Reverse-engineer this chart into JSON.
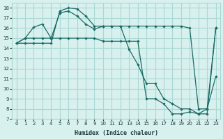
{
  "xlabel": "Humidex (Indice chaleur)",
  "bg_color": "#d8f0ee",
  "line_color": "#1a6b64",
  "grid_color": "#aad8d4",
  "xlim": [
    -0.5,
    23.5
  ],
  "ylim": [
    7,
    18.5
  ],
  "xticks": [
    0,
    1,
    2,
    3,
    4,
    5,
    6,
    7,
    8,
    9,
    10,
    11,
    12,
    13,
    14,
    15,
    16,
    17,
    18,
    19,
    20,
    21,
    22,
    23
  ],
  "yticks": [
    7,
    8,
    9,
    10,
    11,
    12,
    13,
    14,
    15,
    16,
    17,
    18
  ],
  "line1_x": [
    0,
    1,
    2,
    3,
    4,
    5,
    6,
    7,
    8,
    9,
    10,
    11,
    12,
    13,
    14,
    15,
    16,
    17,
    18,
    19,
    20,
    21,
    22,
    23
  ],
  "line1_y": [
    14.5,
    15.0,
    16.1,
    16.4,
    15.0,
    17.5,
    17.7,
    17.2,
    16.4,
    15.9,
    16.2,
    16.2,
    16.2,
    13.9,
    12.4,
    10.5,
    10.5,
    9.0,
    8.5,
    8.0,
    8.0,
    7.5,
    7.5,
    16.0
  ],
  "line2_x": [
    0,
    1,
    2,
    3,
    4,
    5,
    6,
    7,
    8,
    9,
    10,
    11,
    12,
    13,
    14,
    15,
    16,
    17,
    18,
    19,
    20,
    21,
    22,
    23
  ],
  "line2_y": [
    14.5,
    15.0,
    15.0,
    15.0,
    15.0,
    15.0,
    15.0,
    15.0,
    15.0,
    15.0,
    14.7,
    14.7,
    14.7,
    14.7,
    14.7,
    9.0,
    9.0,
    8.5,
    7.5,
    7.5,
    7.7,
    7.5,
    8.0,
    11.2
  ],
  "line3_x": [
    0,
    1,
    2,
    3,
    4,
    5,
    6,
    7,
    8,
    9,
    10,
    11,
    12,
    13,
    14,
    15,
    16,
    17,
    18,
    19,
    20,
    21,
    22,
    23
  ],
  "line3_y": [
    14.5,
    14.5,
    14.5,
    14.5,
    14.5,
    17.7,
    18.0,
    17.9,
    17.2,
    16.2,
    16.2,
    16.2,
    16.2,
    16.2,
    16.2,
    16.2,
    16.2,
    16.2,
    16.2,
    16.2,
    16.0,
    8.0,
    8.0,
    16.0
  ]
}
